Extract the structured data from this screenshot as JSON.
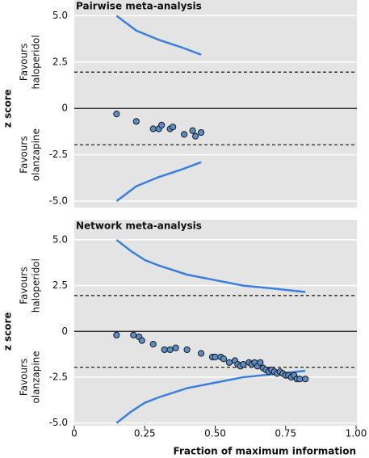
{
  "chart_data": [
    {
      "type": "scatter",
      "title": "Pairwise meta-analysis",
      "ylabel": "z score",
      "upper_label": [
        "Favours",
        "haloperidol"
      ],
      "lower_label": [
        "Favours",
        "olanzapine"
      ],
      "xlim": [
        0,
        1
      ],
      "ylim": [
        -5.35,
        5.85
      ],
      "yticks": [
        {
          "value": 5,
          "label": "5.0"
        },
        2.5,
        0,
        -2.5,
        {
          "value": -5,
          "label": "-5.0"
        }
      ],
      "grid": true,
      "background": "#e4e4e4",
      "dashed_lines": [
        1.96,
        -1.96
      ],
      "points": {
        "color": "#5b8dc9",
        "x": [
          0.15,
          0.22,
          0.28,
          0.3,
          0.31,
          0.34,
          0.35,
          0.39,
          0.42,
          0.43,
          0.45
        ],
        "values": [
          -0.3,
          -0.7,
          -1.1,
          -1.1,
          -0.9,
          -1.1,
          -1.0,
          -1.4,
          -1.2,
          -1.5,
          -1.3
        ]
      },
      "series": [
        {
          "color": "#3a7fdc",
          "x": [
            0.15,
            0.22,
            0.3,
            0.38,
            0.45
          ],
          "values": [
            5.0,
            4.2,
            3.7,
            3.3,
            2.9
          ]
        },
        {
          "color": "#3a7fdc",
          "x": [
            0.15,
            0.22,
            0.3,
            0.38,
            0.45
          ],
          "values": [
            -5.0,
            -4.2,
            -3.7,
            -3.3,
            -2.9
          ]
        }
      ]
    },
    {
      "type": "scatter",
      "title": "Network meta-analysis",
      "ylabel": "z score",
      "xlabel": "Fraction of maximum information",
      "upper_label": [
        "Favours",
        "haloperidol"
      ],
      "lower_label": [
        "Favours",
        "olanzapine"
      ],
      "xlim": [
        0,
        1
      ],
      "ylim": [
        -5.15,
        6.1
      ],
      "xticks": [
        0,
        0.25,
        {
          "value": 0.5,
          "label": "0.50"
        },
        0.75,
        {
          "value": 1,
          "label": "1.00"
        }
      ],
      "yticks": [
        {
          "value": 5,
          "label": "5.0"
        },
        2.5,
        0,
        -2.5,
        {
          "value": -5,
          "label": "-5.0"
        }
      ],
      "grid": true,
      "background": "#e4e4e4",
      "dashed_lines": [
        1.96,
        -1.96
      ],
      "points": {
        "color": "#5b8dc9",
        "x": [
          0.15,
          0.21,
          0.23,
          0.24,
          0.28,
          0.32,
          0.34,
          0.36,
          0.4,
          0.45,
          0.49,
          0.5,
          0.52,
          0.53,
          0.55,
          0.57,
          0.58,
          0.59,
          0.6,
          0.62,
          0.63,
          0.64,
          0.65,
          0.66,
          0.67,
          0.68,
          0.69,
          0.7,
          0.71,
          0.72,
          0.73,
          0.74,
          0.75,
          0.76,
          0.77,
          0.78,
          0.79,
          0.8,
          0.82
        ],
        "values": [
          -0.2,
          -0.2,
          -0.3,
          -0.5,
          -0.7,
          -1.0,
          -1.0,
          -0.9,
          -1.0,
          -1.2,
          -1.4,
          -1.4,
          -1.4,
          -1.5,
          -1.7,
          -1.6,
          -1.8,
          -1.9,
          -1.8,
          -1.7,
          -1.8,
          -1.7,
          -1.9,
          -1.7,
          -2.0,
          -2.1,
          -2.2,
          -2.1,
          -2.2,
          -2.3,
          -2.2,
          -2.3,
          -2.4,
          -2.4,
          -2.5,
          -2.4,
          -2.6,
          -2.6,
          -2.6
        ]
      },
      "series": [
        {
          "color": "#3a7fdc",
          "x": [
            0.15,
            0.2,
            0.25,
            0.3,
            0.4,
            0.5,
            0.6,
            0.7,
            0.82
          ],
          "values": [
            5.0,
            4.4,
            3.9,
            3.6,
            3.1,
            2.8,
            2.5,
            2.35,
            2.15
          ]
        },
        {
          "color": "#3a7fdc",
          "x": [
            0.15,
            0.2,
            0.25,
            0.3,
            0.4,
            0.5,
            0.6,
            0.7,
            0.82
          ],
          "values": [
            -5.0,
            -4.4,
            -3.9,
            -3.6,
            -3.1,
            -2.8,
            -2.5,
            -2.35,
            -2.15
          ]
        }
      ]
    }
  ]
}
